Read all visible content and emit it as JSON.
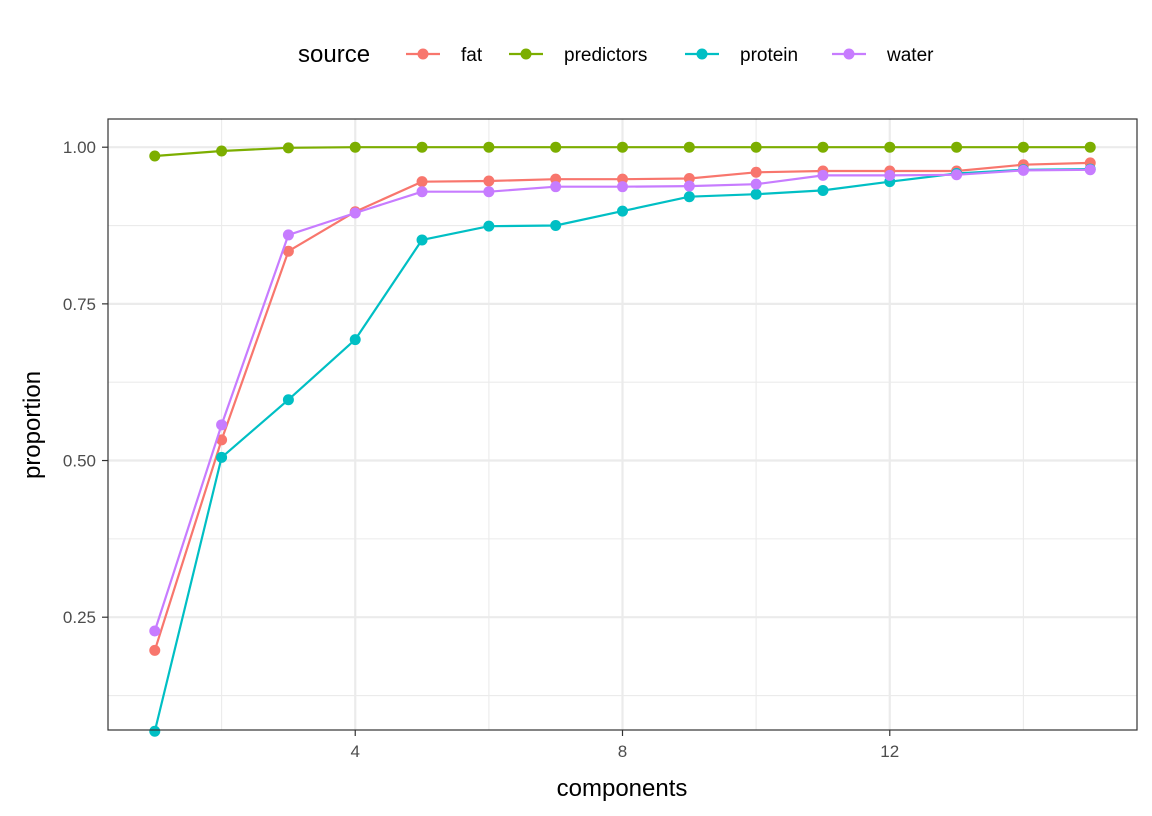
{
  "chart_data": {
    "type": "line",
    "title": "",
    "xlabel": "components",
    "ylabel": "proportion",
    "xlim": [
      0.3,
      15.7
    ],
    "ylim": [
      0.07,
      1.045
    ],
    "x_ticks": [
      4,
      8,
      12
    ],
    "x_tick_labels": [
      "4",
      "8",
      "12"
    ],
    "x_minor": [
      2,
      6,
      10,
      14
    ],
    "y_ticks": [
      0.25,
      0.5,
      0.75,
      1.0
    ],
    "y_tick_labels": [
      "0.25",
      "0.50",
      "0.75",
      "1.00"
    ],
    "y_minor": [
      0.125,
      0.375,
      0.625,
      0.875
    ],
    "grid": true,
    "legend": {
      "title": "source",
      "position": "top"
    },
    "x": [
      1,
      2,
      3,
      4,
      5,
      6,
      7,
      8,
      9,
      10,
      11,
      12,
      13,
      14,
      15
    ],
    "series": [
      {
        "name": "fat",
        "color": "#F8766D",
        "values": [
          0.197,
          0.533,
          0.834,
          0.897,
          0.945,
          0.946,
          0.949,
          0.949,
          0.95,
          0.96,
          0.962,
          0.962,
          0.962,
          0.972,
          0.975
        ]
      },
      {
        "name": "predictors",
        "color": "#7CAE00",
        "values": [
          0.986,
          0.994,
          0.999,
          1.0,
          1.0,
          1.0,
          1.0,
          1.0,
          1.0,
          1.0,
          1.0,
          1.0,
          1.0,
          1.0,
          1.0
        ]
      },
      {
        "name": "protein",
        "color": "#00BFC4",
        "values": [
          0.068,
          0.505,
          0.597,
          0.693,
          0.852,
          0.874,
          0.875,
          0.898,
          0.921,
          0.925,
          0.931,
          0.945,
          0.958,
          0.964,
          0.965
        ]
      },
      {
        "name": "water",
        "color": "#C77CFF",
        "values": [
          0.228,
          0.557,
          0.86,
          0.895,
          0.929,
          0.929,
          0.937,
          0.937,
          0.938,
          0.941,
          0.955,
          0.955,
          0.956,
          0.963,
          0.964
        ]
      }
    ]
  }
}
